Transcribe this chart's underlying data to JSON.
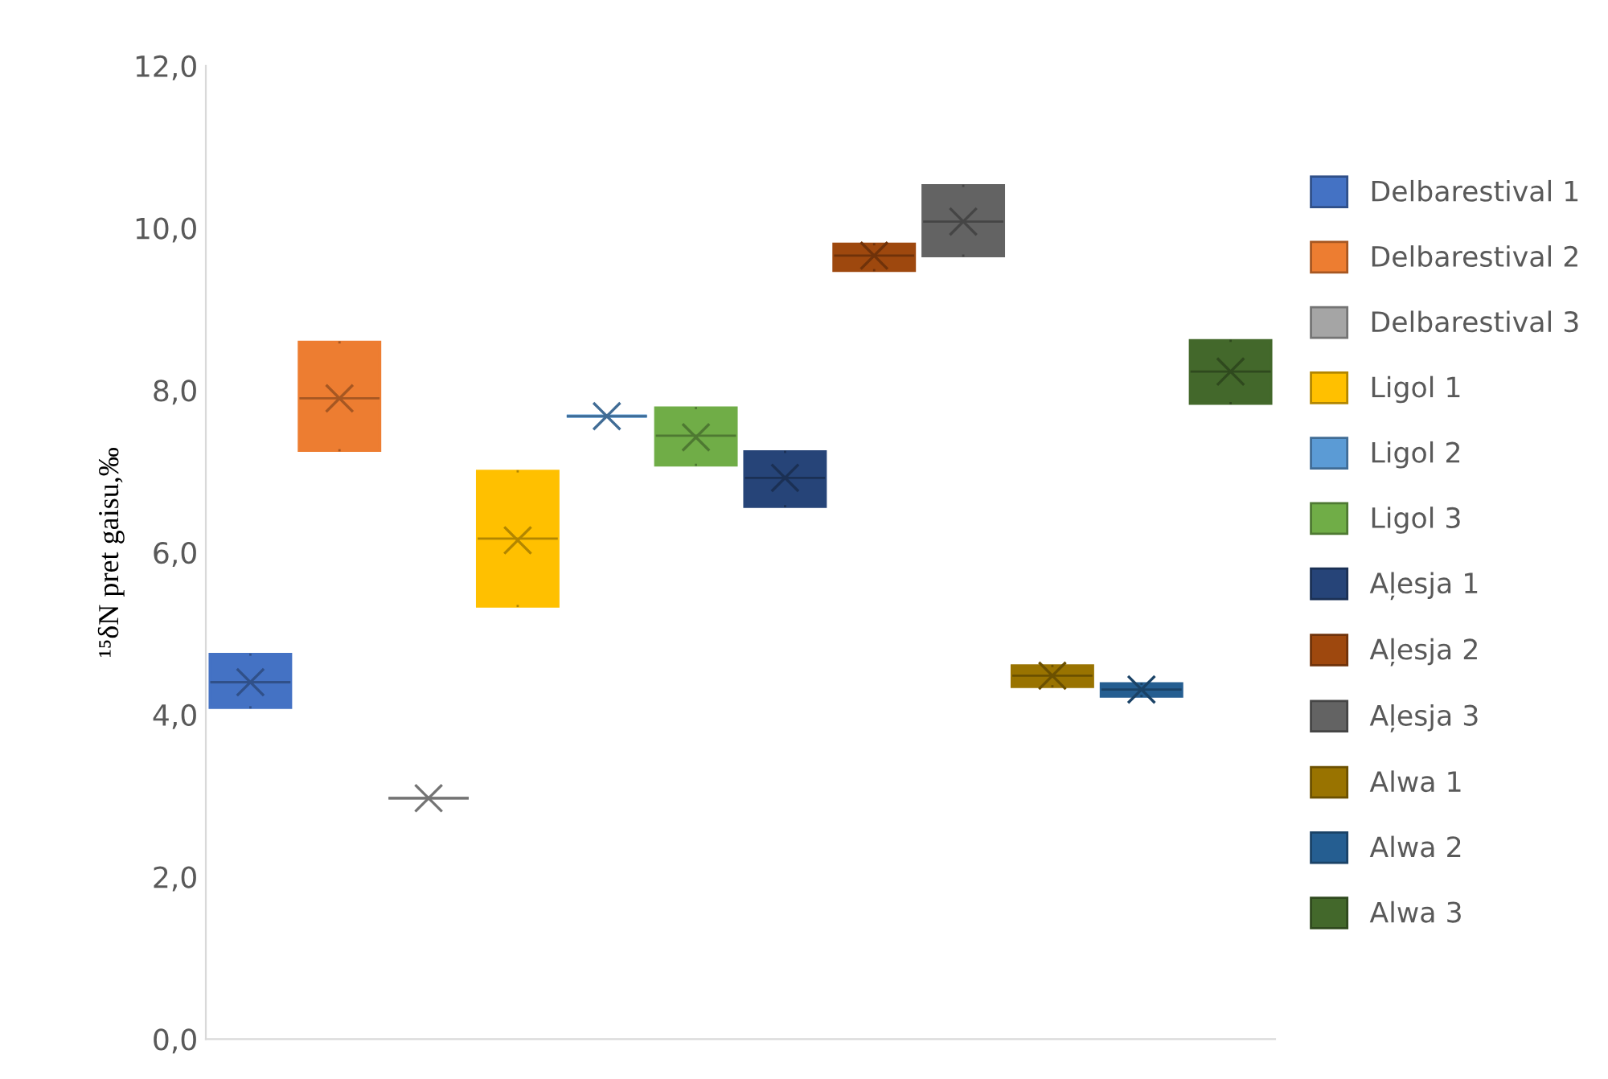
{
  "chart_data": {
    "type": "box",
    "ylabel": "¹⁵δN pret gaisu,‰",
    "categories": [
      null
    ],
    "ylim": [
      0,
      12
    ],
    "yticks": [
      {
        "value": 0,
        "label": "0,0"
      },
      {
        "value": 2,
        "label": "2,0"
      },
      {
        "value": 4,
        "label": "4,0"
      },
      {
        "value": 6,
        "label": "6,0"
      },
      {
        "value": 8,
        "label": "8,0"
      },
      {
        "value": 10,
        "label": "10,0"
      },
      {
        "value": 12,
        "label": "12,0"
      }
    ],
    "tick_labels": "y",
    "legend": "right",
    "grid": false,
    "marker": "cross",
    "series": [
      {
        "name": "Delbarestival 1",
        "color": "#4472c4",
        "boxes": [
          {
            "low": 4.09,
            "q1": 4.09,
            "median": 4.4,
            "q3": 4.74,
            "high": 4.74,
            "mean": 4.4
          }
        ]
      },
      {
        "name": "Delbarestival 2",
        "color": "#ed7d31",
        "boxes": [
          {
            "low": 7.26,
            "q1": 7.26,
            "median": 7.9,
            "q3": 8.59,
            "high": 8.59,
            "mean": 7.9
          }
        ]
      },
      {
        "name": "Delbarestival 3",
        "color": "#a5a5a5",
        "boxes": [
          {
            "low": 2.97,
            "q1": 2.97,
            "median": 2.97,
            "q3": 2.97,
            "high": 2.97,
            "mean": 2.97
          }
        ]
      },
      {
        "name": "Ligol 1",
        "color": "#ffc000",
        "boxes": [
          {
            "low": 5.34,
            "q1": 5.34,
            "median": 6.17,
            "q3": 7.0,
            "high": 7.0,
            "mean": 6.15
          }
        ]
      },
      {
        "name": "Ligol 2",
        "color": "#5b9bd5",
        "boxes": [
          {
            "low": 7.68,
            "q1": 7.68,
            "median": 7.68,
            "q3": 7.68,
            "high": 7.68,
            "mean": 7.68
          }
        ]
      },
      {
        "name": "Ligol 3",
        "color": "#70ad47",
        "boxes": [
          {
            "low": 7.08,
            "q1": 7.08,
            "median": 7.44,
            "q3": 7.78,
            "high": 7.78,
            "mean": 7.42
          }
        ]
      },
      {
        "name": "Aļesja 1",
        "color": "#264478",
        "boxes": [
          {
            "low": 6.57,
            "q1": 6.57,
            "median": 6.92,
            "q3": 7.24,
            "high": 7.24,
            "mean": 6.92
          }
        ]
      },
      {
        "name": "Aļesja 2",
        "color": "#9e480e",
        "boxes": [
          {
            "low": 9.48,
            "q1": 9.48,
            "median": 9.66,
            "q3": 9.8,
            "high": 9.8,
            "mean": 9.66
          }
        ]
      },
      {
        "name": "Aļesja 3",
        "color": "#636363",
        "boxes": [
          {
            "low": 9.66,
            "q1": 9.66,
            "median": 10.08,
            "q3": 10.52,
            "high": 10.52,
            "mean": 10.08
          }
        ]
      },
      {
        "name": "Alwa 1",
        "color": "#997300",
        "boxes": [
          {
            "low": 4.35,
            "q1": 4.35,
            "median": 4.48,
            "q3": 4.6,
            "high": 4.6,
            "mean": 4.48
          }
        ]
      },
      {
        "name": "Alwa 2",
        "color": "#255e91",
        "boxes": [
          {
            "low": 4.23,
            "q1": 4.23,
            "median": 4.31,
            "q3": 4.38,
            "high": 4.38,
            "mean": 4.31
          }
        ]
      },
      {
        "name": "Alwa 3",
        "color": "#43682b",
        "boxes": [
          {
            "low": 7.84,
            "q1": 7.84,
            "median": 8.23,
            "q3": 8.61,
            "high": 8.61,
            "mean": 8.23
          }
        ]
      }
    ]
  }
}
